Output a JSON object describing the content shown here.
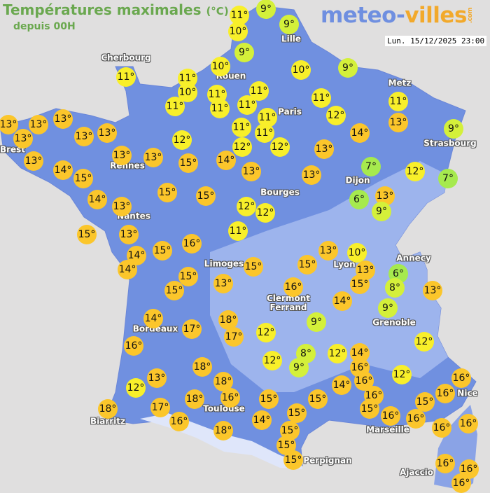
{
  "header": {
    "title": "Températures maximales",
    "unit": "(°C)",
    "subtitle": "depuis 00H",
    "logo_part1": "meteo-",
    "logo_part2": "villes",
    "logo_suffix": ".com",
    "timestamp": "Lun. 15/12/2025 23:00"
  },
  "colors": {
    "background": "#e0dfdf",
    "land": "#7090e0",
    "relief": "#a9bdf0",
    "title": "#6aa84f",
    "marker_orange": "#fbc62b",
    "marker_yellow": "#f8ef2a",
    "marker_lime": "#d4f03a",
    "marker_green": "#a6ea4e"
  },
  "cities": [
    "Cherbourg",
    "Lille",
    "Rouen",
    "Paris",
    "Metz",
    "Strasbourg",
    "Brest",
    "Rennes",
    "Nantes",
    "Dijon",
    "Bourges",
    "Limoges",
    "Clermont\nFerrand",
    "Lyon",
    "Annecy",
    "Grenoble",
    "Bordeaux",
    "Toulouse",
    "Biarritz",
    "Marseille",
    "Nice",
    "Perpignan",
    "Ajaccio"
  ],
  "temperatures": [
    11,
    10,
    9,
    9,
    9,
    10,
    10,
    9,
    11,
    11,
    10,
    11,
    11,
    11,
    11,
    11,
    11,
    11,
    11,
    11,
    12,
    12,
    12,
    12,
    11,
    13,
    14,
    9,
    13,
    7,
    12,
    7,
    13,
    6,
    13,
    9,
    13,
    13,
    13,
    13,
    13,
    13,
    13,
    14,
    15,
    13,
    13,
    15,
    14,
    13,
    15,
    15,
    14,
    13,
    15,
    13,
    12,
    12,
    11,
    16,
    14,
    14,
    15,
    15,
    15,
    13,
    15,
    13,
    10,
    15,
    16,
    13,
    15,
    6,
    8,
    13,
    14,
    9,
    9,
    12,
    12,
    8,
    9,
    12,
    14,
    16,
    16,
    14,
    16,
    15,
    16,
    12,
    12,
    16,
    16,
    15,
    16,
    16,
    16,
    16,
    16,
    16,
    15,
    15,
    14,
    15,
    15,
    15,
    15,
    14,
    17,
    18,
    17,
    16,
    18,
    13,
    12,
    18,
    16,
    18,
    18,
    17,
    16,
    18
  ],
  "unit_symbol": "°"
}
